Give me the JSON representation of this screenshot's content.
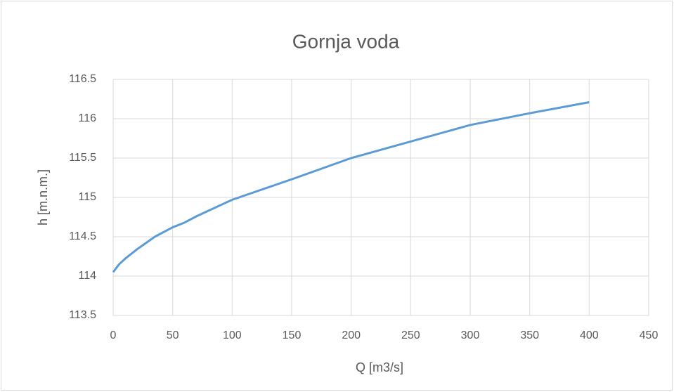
{
  "chart_data": {
    "type": "line",
    "title": "Gornja voda",
    "x_label": "Q [m3/s]",
    "y_label": "h [m.n.m.]",
    "x": [
      0,
      5,
      10,
      20,
      35,
      50,
      60,
      70,
      80,
      90,
      100,
      150,
      200,
      250,
      300,
      350,
      400
    ],
    "series": [
      {
        "name": "h",
        "color": "#5b9bd5",
        "values": [
          114.05,
          114.15,
          114.22,
          114.34,
          114.5,
          114.62,
          114.68,
          114.76,
          114.83,
          114.9,
          114.97,
          115.23,
          115.5,
          115.71,
          115.92,
          116.07,
          116.21
        ]
      }
    ],
    "xlim": [
      0,
      450
    ],
    "xticks": [
      0,
      50,
      100,
      150,
      200,
      250,
      300,
      350,
      400,
      450
    ],
    "ylim": [
      113.5,
      116.5
    ],
    "yticks": [
      113.5,
      114,
      114.5,
      115,
      115.5,
      116,
      116.5
    ],
    "grid": true
  }
}
